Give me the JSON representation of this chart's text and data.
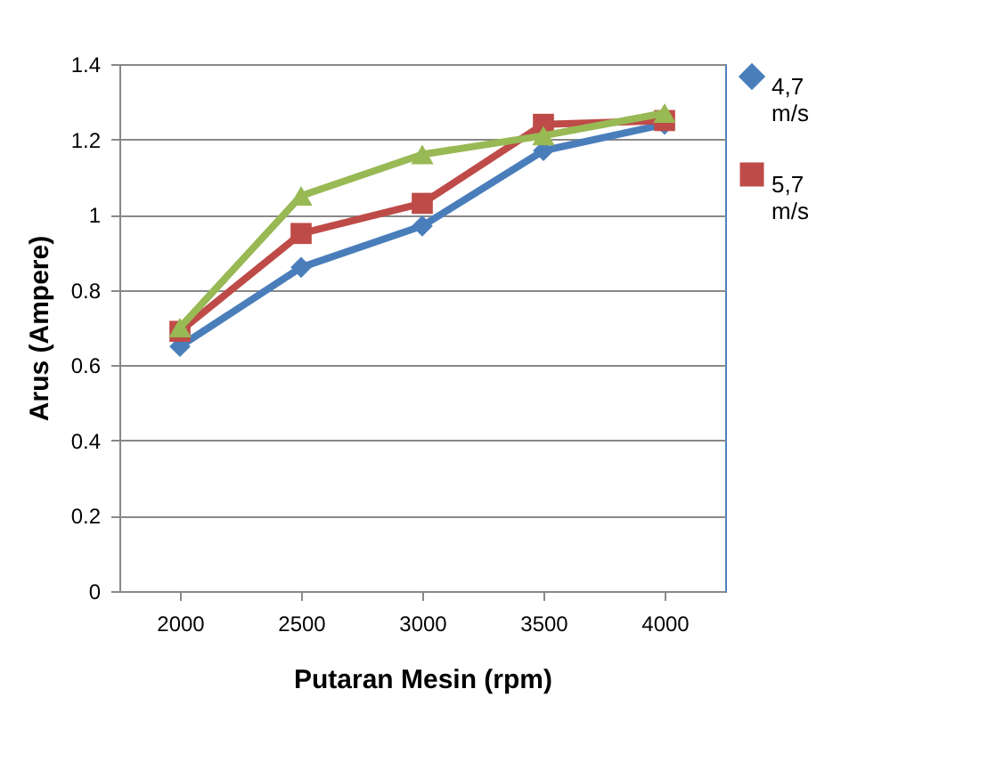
{
  "chart_data": {
    "type": "line",
    "xlabel": "Putaran Mesin (rpm)",
    "ylabel": "Arus (Ampere)",
    "categories": [
      "2000",
      "2500",
      "3000",
      "3500",
      "4000"
    ],
    "series": [
      {
        "name": "4,7 m/s",
        "color": "#4a7ebb",
        "marker": "diamond",
        "values": [
          0.65,
          0.86,
          0.97,
          1.17,
          1.24
        ]
      },
      {
        "name": "5,7 m/s",
        "color": "#be4b48",
        "marker": "square",
        "values": [
          0.69,
          0.95,
          1.03,
          1.24,
          1.25
        ]
      },
      {
        "color": "#98b954",
        "marker": "triangle",
        "values": [
          0.7,
          1.05,
          1.16,
          1.21,
          1.27
        ]
      }
    ],
    "ylim": [
      0,
      1.4
    ],
    "yticks": [
      0,
      0.2,
      0.4,
      0.6,
      0.8,
      1,
      1.2,
      1.4
    ],
    "grid": "y",
    "legend": "right"
  }
}
